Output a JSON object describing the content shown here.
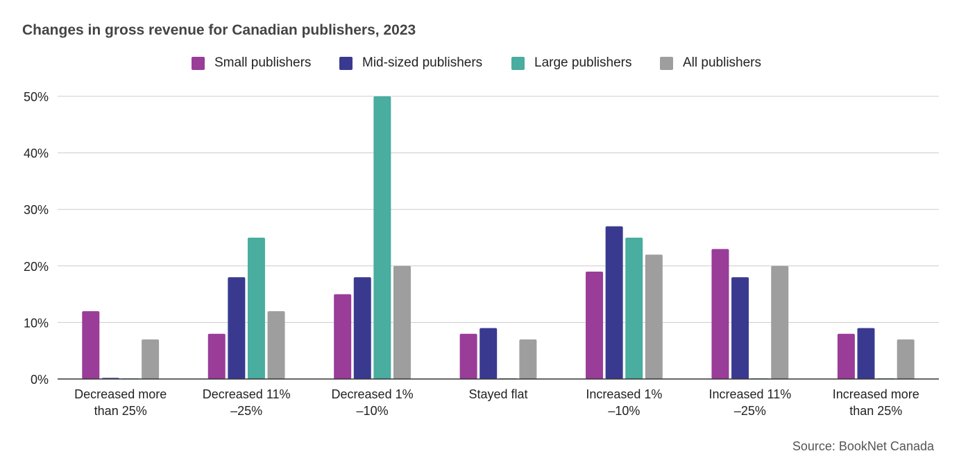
{
  "chart_data": {
    "type": "bar",
    "title": "Changes in gross revenue for Canadian publishers, 2023",
    "xlabel": "",
    "ylabel": "",
    "ylim": [
      0,
      50
    ],
    "y_ticks": [
      "0%",
      "10%",
      "20%",
      "30%",
      "40%",
      "50%"
    ],
    "y_tick_values": [
      0,
      10,
      20,
      30,
      40,
      50
    ],
    "grid": true,
    "legend_position": "top",
    "categories": [
      [
        "Decreased more",
        "than 25%"
      ],
      [
        "Decreased 11%",
        "–25%"
      ],
      [
        "Decreased 1%",
        "–10%"
      ],
      [
        "Stayed flat"
      ],
      [
        "Increased 1%",
        "–10%"
      ],
      [
        "Increased 11%",
        "–25%"
      ],
      [
        "Increased more",
        "than 25%"
      ]
    ],
    "series": [
      {
        "name": "Small publishers",
        "color": "#993d99",
        "values": [
          12,
          8,
          15,
          8,
          19,
          23,
          8
        ]
      },
      {
        "name": "Mid-sized publishers",
        "color": "#393a8f",
        "values": [
          0.2,
          18,
          18,
          9,
          27,
          18,
          9
        ]
      },
      {
        "name": "Large publishers",
        "color": "#49ad9f",
        "values": [
          0.1,
          25,
          50,
          0.1,
          25,
          0.1,
          0.1
        ]
      },
      {
        "name": "All publishers",
        "color": "#9e9e9e",
        "values": [
          7,
          12,
          20,
          7,
          22,
          20,
          7
        ]
      }
    ],
    "source": "Source: BookNet Canada"
  }
}
